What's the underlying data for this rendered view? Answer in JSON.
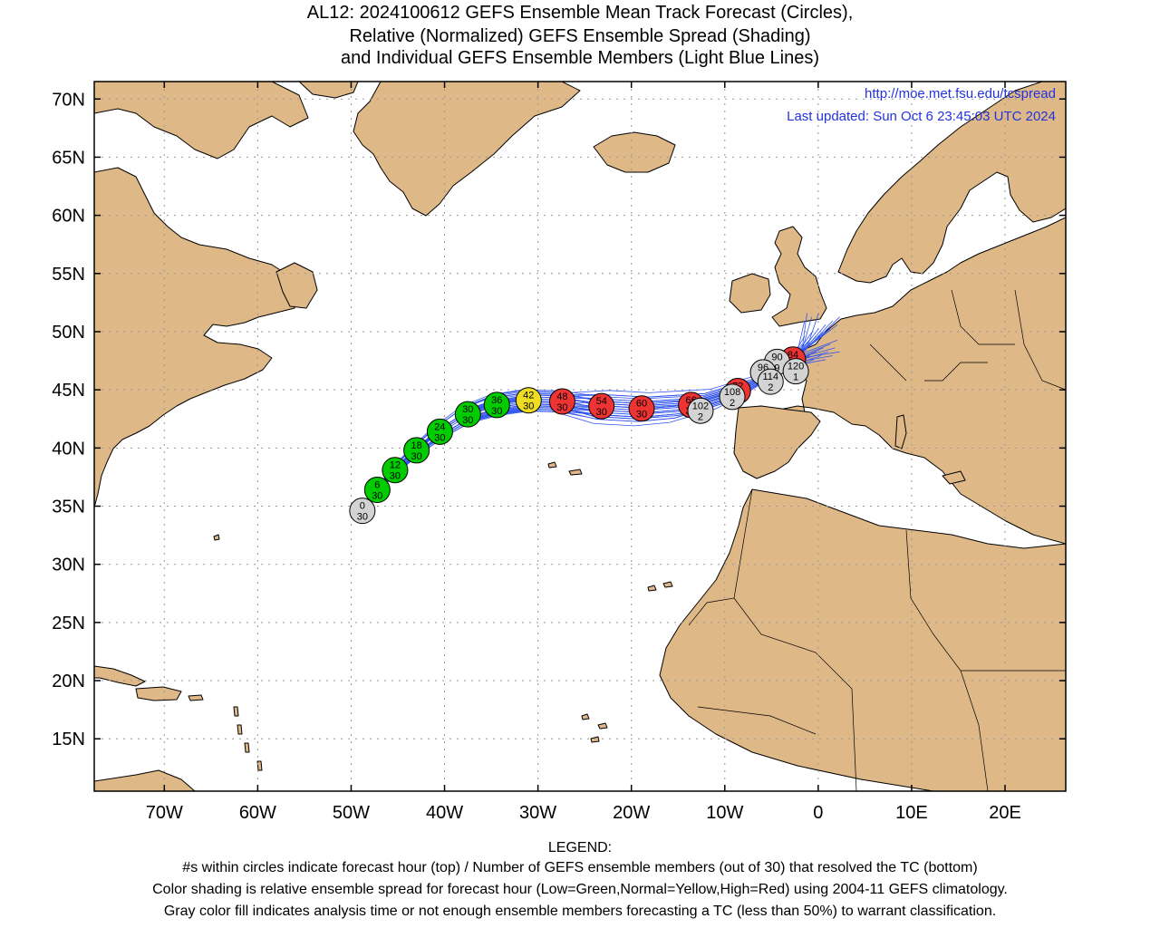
{
  "title": {
    "line1": "AL12: 2024100612 GEFS Ensemble Mean Track Forecast (Circles),",
    "line2": "Relative (Normalized) GEFS Ensemble Spread (Shading)",
    "line3": "and Individual GEFS Ensemble Members (Light Blue Lines)"
  },
  "header_info": {
    "url": "http://moe.met.fsu.edu/tcspread",
    "updated": "Last updated: Sun Oct 6 23:45:03 UTC 2024"
  },
  "axes": {
    "lat_labels": [
      "70N",
      "65N",
      "60N",
      "55N",
      "50N",
      "45N",
      "40N",
      "35N",
      "30N",
      "25N",
      "20N",
      "15N"
    ],
    "lat_values": [
      70,
      65,
      60,
      55,
      50,
      45,
      40,
      35,
      30,
      25,
      20,
      15
    ],
    "lon_labels": [
      "70W",
      "60W",
      "50W",
      "40W",
      "30W",
      "20W",
      "10W",
      "0",
      "10E",
      "20E"
    ],
    "lon_values": [
      -70,
      -60,
      -50,
      -40,
      -30,
      -20,
      -10,
      0,
      10,
      20
    ],
    "lon_range": [
      -77.5,
      26.5
    ],
    "lat_range": [
      10.5,
      71.5
    ]
  },
  "colors": {
    "land": "#DEB887",
    "ocean": "#FFFFFF",
    "member_track": "#3355EE",
    "low_spread": "#00CC00",
    "normal_spread": "#EEDD22",
    "high_spread": "#EE3333",
    "gray_fill": "#D3D3D3",
    "url_text": "#2233DD"
  },
  "track": [
    {
      "hour": "0",
      "members": "30",
      "lon": -48.8,
      "lat": 34.6,
      "color": "gray"
    },
    {
      "hour": "6",
      "members": "30",
      "lon": -47.2,
      "lat": 36.4,
      "color": "green"
    },
    {
      "hour": "12",
      "members": "30",
      "lon": -45.3,
      "lat": 38.1,
      "color": "green"
    },
    {
      "hour": "18",
      "members": "30",
      "lon": -43.0,
      "lat": 39.8,
      "color": "green"
    },
    {
      "hour": "24",
      "members": "30",
      "lon": -40.5,
      "lat": 41.4,
      "color": "green"
    },
    {
      "hour": "30",
      "members": "30",
      "lon": -37.5,
      "lat": 42.9,
      "color": "green"
    },
    {
      "hour": "36",
      "members": "30",
      "lon": -34.4,
      "lat": 43.7,
      "color": "green"
    },
    {
      "hour": "42",
      "members": "30",
      "lon": -31.0,
      "lat": 44.1,
      "color": "yellow"
    },
    {
      "hour": "48",
      "members": "30",
      "lon": -27.4,
      "lat": 44.0,
      "color": "red"
    },
    {
      "hour": "54",
      "members": "30",
      "lon": -23.2,
      "lat": 43.6,
      "color": "red"
    },
    {
      "hour": "60",
      "members": "30",
      "lon": -18.9,
      "lat": 43.4,
      "color": "red"
    },
    {
      "hour": "66",
      "members": "30",
      "lon": -13.6,
      "lat": 43.7,
      "color": "red"
    },
    {
      "hour": "72",
      "members": "30",
      "lon": -8.6,
      "lat": 44.9,
      "color": "red"
    },
    {
      "hour": "78",
      "members": "30",
      "lon": -5.4,
      "lat": 46.2,
      "color": "red"
    },
    {
      "hour": "84",
      "members": "30",
      "lon": -2.7,
      "lat": 47.6,
      "color": "red"
    },
    {
      "hour": "90",
      "members": "9",
      "lon": -4.4,
      "lat": 47.4,
      "color": "gray"
    },
    {
      "hour": "96",
      "members": "7",
      "lon": -5.9,
      "lat": 46.5,
      "color": "gray"
    },
    {
      "hour": "102",
      "members": "2",
      "lon": -12.6,
      "lat": 43.2,
      "color": "gray"
    },
    {
      "hour": "108",
      "members": "2",
      "lon": -9.2,
      "lat": 44.4,
      "color": "gray"
    },
    {
      "hour": "114",
      "members": "2",
      "lon": -5.1,
      "lat": 45.7,
      "color": "gray"
    },
    {
      "hour": "120",
      "members": "1",
      "lon": -2.4,
      "lat": 46.6,
      "color": "gray"
    }
  ],
  "legend": {
    "heading": "LEGEND:",
    "line1": "#s within circles indicate forecast hour (top) / Number of GEFS ensemble members (out of 30) that resolved the TC (bottom)",
    "line2": "Color shading is relative ensemble spread for forecast hour (Low=Green,Normal=Yellow,High=Red) using 2004-11 GEFS climatology.",
    "line3": "Gray color fill indicates analysis time or not enough ensemble members forecasting a TC (less than 50%) to warrant classification."
  }
}
